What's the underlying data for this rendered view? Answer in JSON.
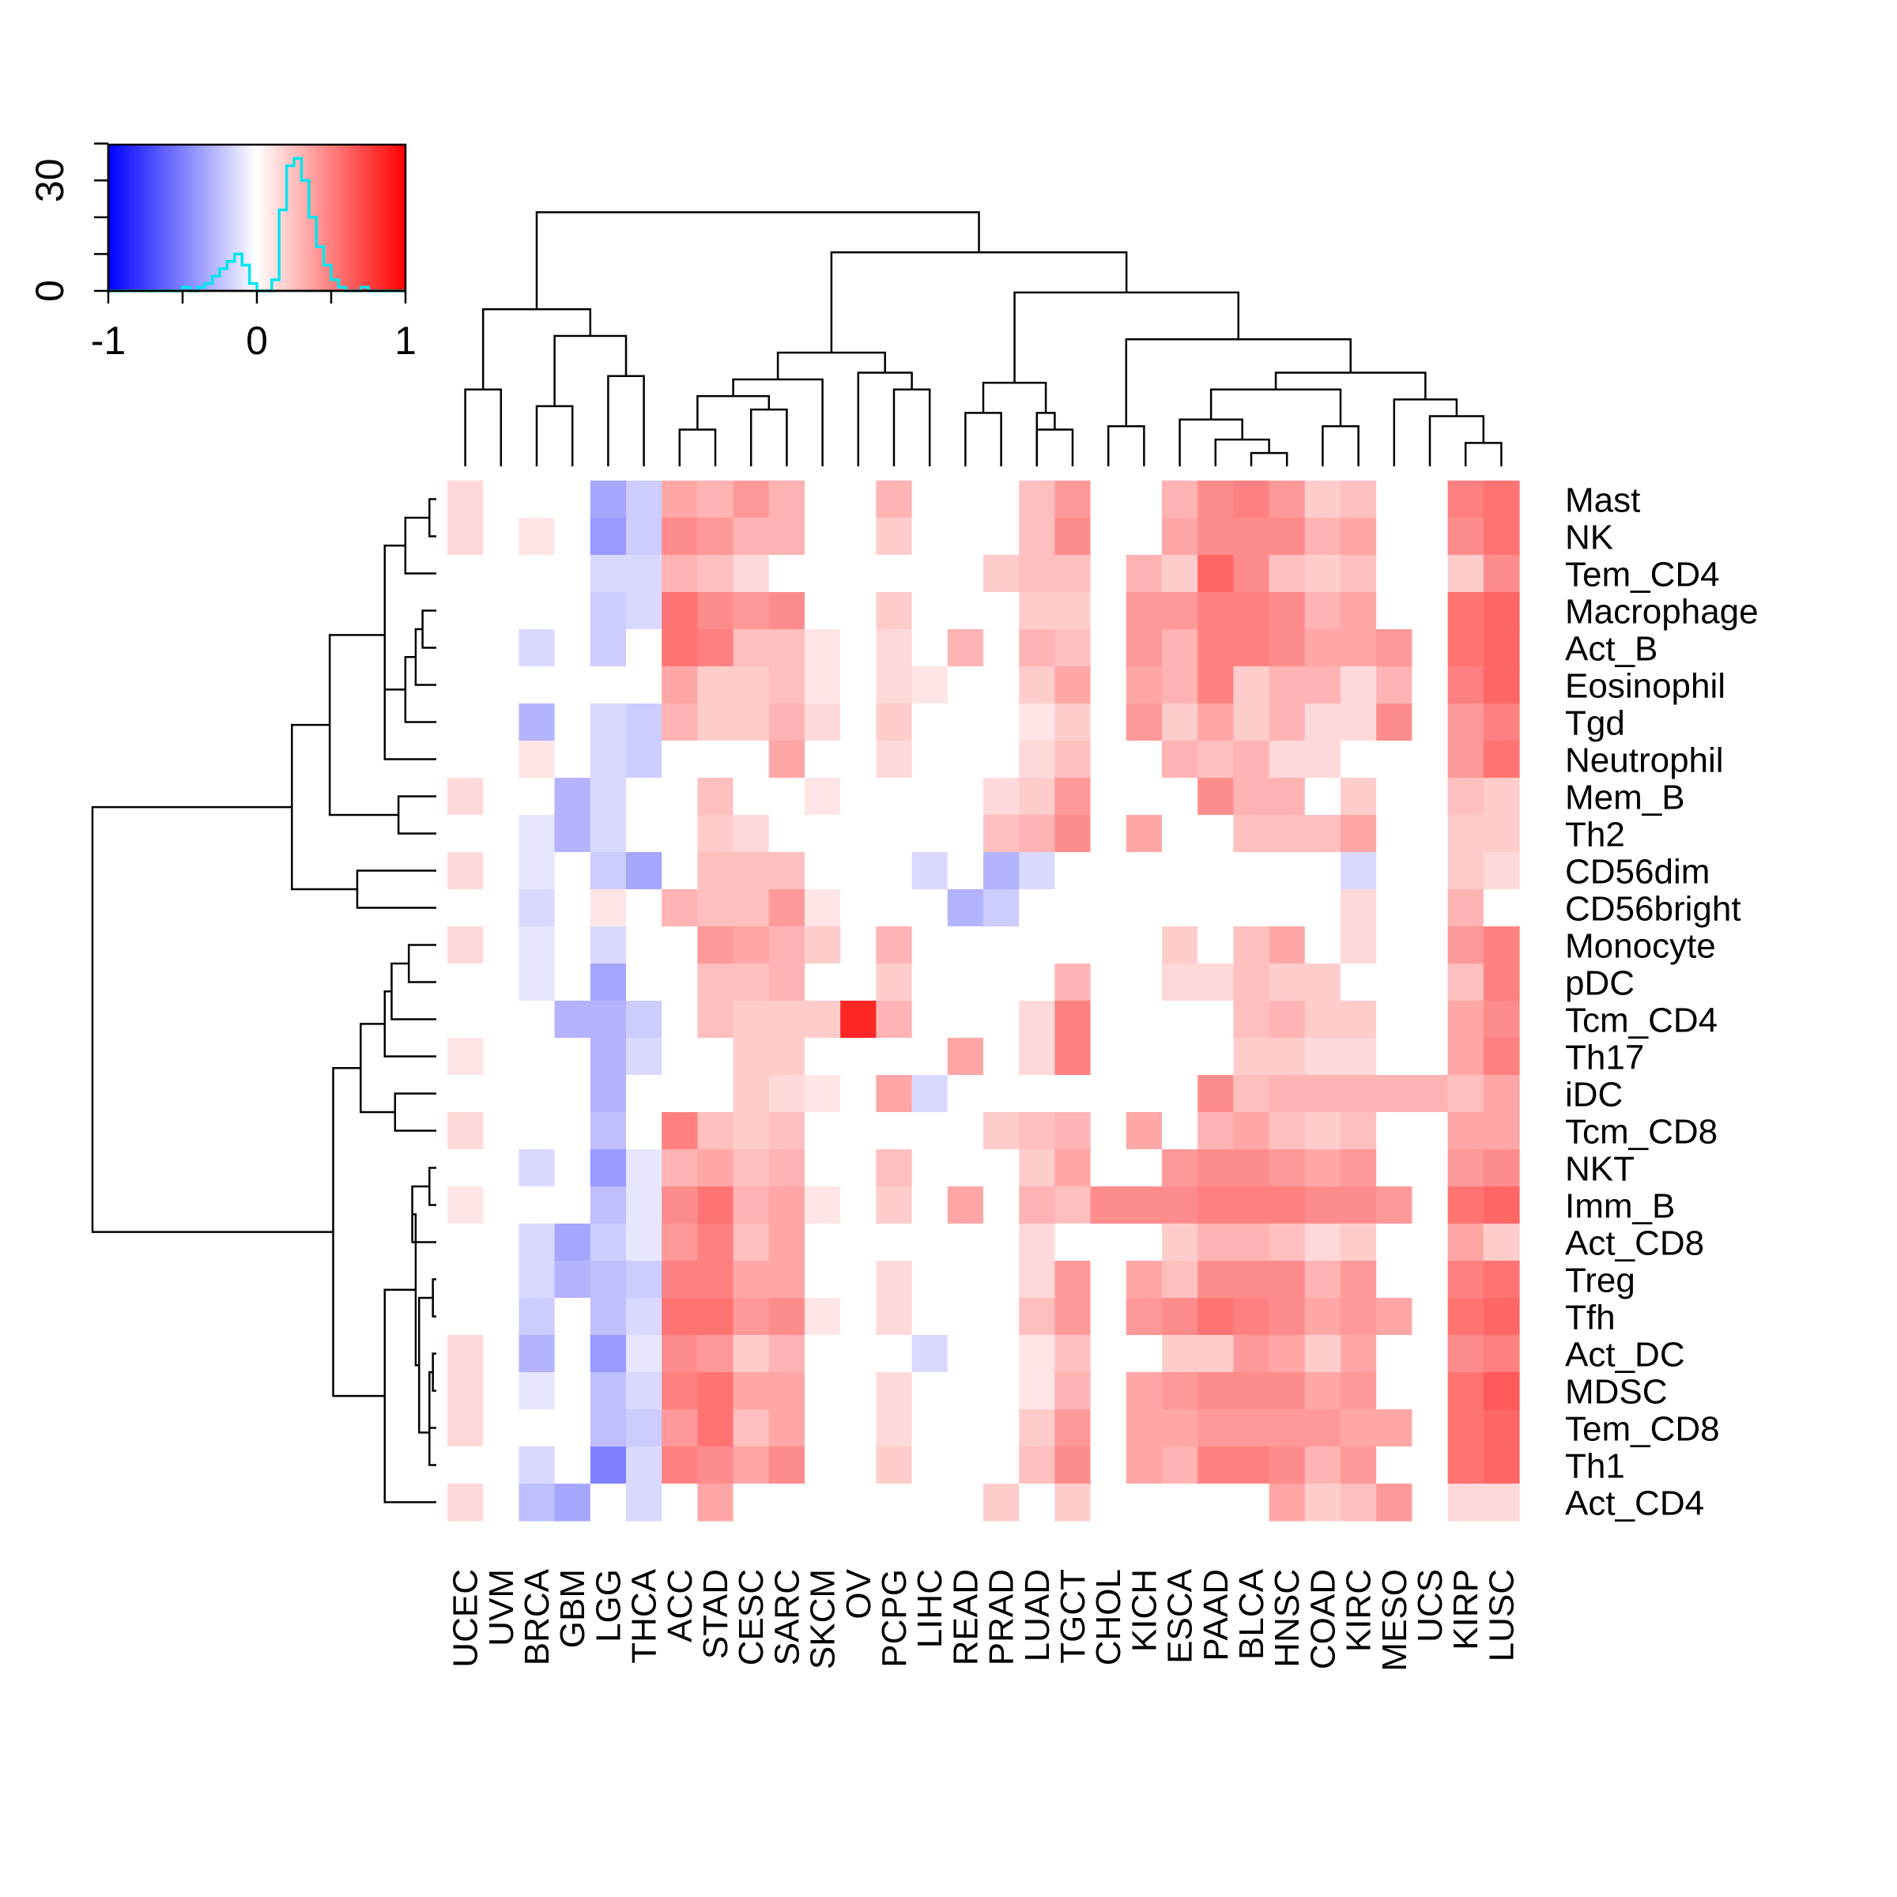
{
  "chart_data": {
    "type": "heatmap",
    "title": "",
    "color_scale": {
      "min": -1,
      "max": 1,
      "low": "#0000ff",
      "mid": "#ffffff",
      "high": "#ff0000"
    },
    "color_key": {
      "x_ticks": [
        "-1",
        "0",
        "1"
      ],
      "y_ticks": [
        "0",
        "30"
      ],
      "hist_color": "#00e5ee",
      "histogram": {
        "x": [
          -0.6,
          -0.55,
          -0.5,
          -0.45,
          -0.4,
          -0.35,
          -0.3,
          -0.25,
          -0.2,
          -0.15,
          -0.1,
          -0.05,
          0,
          0.05,
          0.1,
          0.15,
          0.2,
          0.25,
          0.3,
          0.35,
          0.4,
          0.45,
          0.5,
          0.55,
          0.6,
          0.65,
          0.7,
          0.75
        ],
        "counts": [
          0,
          0,
          1,
          0,
          1,
          2,
          4,
          6,
          8,
          10,
          7,
          2,
          0,
          0,
          3,
          22,
          34,
          36,
          30,
          20,
          12,
          7,
          3,
          1,
          0,
          0,
          1,
          0
        ]
      }
    },
    "columns": [
      "UCEC",
      "UVM",
      "BRCA",
      "GBM",
      "LGG",
      "THCA",
      "ACC",
      "STAD",
      "CESC",
      "SARC",
      "SKCM",
      "OV",
      "PCPG",
      "LIHC",
      "READ",
      "PRAD",
      "LUAD",
      "TGCT",
      "CHOL",
      "KICH",
      "ESCA",
      "PAAD",
      "BLCA",
      "HNSC",
      "COAD",
      "KIRC",
      "MESO",
      "UCS",
      "KIRP",
      "LUSC"
    ],
    "rows": [
      "Mast",
      "NK",
      "Tem_CD4",
      "Macrophage",
      "Act_B",
      "Eosinophil",
      "Tgd",
      "Neutrophil",
      "Mem_B",
      "Th2",
      "CD56dim",
      "CD56bright",
      "Monocyte",
      "pDC",
      "Tcm_CD4",
      "Th17",
      "iDC",
      "Tcm_CD8",
      "NKT",
      "Imm_B",
      "Act_CD8",
      "Treg",
      "Tfh",
      "Act_DC",
      "MDSC",
      "Tem_CD8",
      "Th1",
      "Act_CD4"
    ],
    "values": [
      [
        0.15,
        0,
        0,
        0,
        -0.35,
        -0.2,
        0.35,
        0.3,
        0.4,
        0.3,
        0,
        0,
        0.3,
        0,
        0,
        0,
        0.25,
        0.4,
        0,
        0,
        0.3,
        0.45,
        0.5,
        0.4,
        0.2,
        0.25,
        0,
        0,
        0.5,
        0.55
      ],
      [
        0.15,
        0,
        0.1,
        0,
        -0.4,
        -0.2,
        0.45,
        0.4,
        0.3,
        0.3,
        0,
        0,
        0.2,
        0,
        0,
        0,
        0.25,
        0.45,
        0,
        0,
        0.35,
        0.45,
        0.45,
        0.45,
        0.3,
        0.35,
        0,
        0,
        0.45,
        0.55
      ],
      [
        0,
        0,
        0,
        0,
        -0.15,
        -0.15,
        0.3,
        0.25,
        0.15,
        0,
        0,
        0,
        0,
        0,
        0,
        0.2,
        0.25,
        0.25,
        0,
        0.3,
        0.2,
        0.6,
        0.45,
        0.25,
        0.2,
        0.25,
        0,
        0,
        0.2,
        0.45
      ],
      [
        0,
        0,
        0,
        0,
        -0.2,
        -0.15,
        0.55,
        0.45,
        0.4,
        0.45,
        0,
        0,
        0.2,
        0,
        0,
        0,
        0.2,
        0.2,
        0,
        0.4,
        0.4,
        0.5,
        0.5,
        0.45,
        0.3,
        0.35,
        0,
        0,
        0.55,
        0.6
      ],
      [
        0,
        0,
        -0.15,
        0,
        -0.2,
        0,
        0.55,
        0.5,
        0.25,
        0.25,
        0.1,
        0,
        0.15,
        0,
        0.3,
        0,
        0.3,
        0.25,
        0,
        0.4,
        0.3,
        0.5,
        0.5,
        0.45,
        0.35,
        0.35,
        0.4,
        0,
        0.55,
        0.6
      ],
      [
        0,
        0,
        0,
        0,
        0,
        0,
        0.35,
        0.2,
        0.2,
        0.25,
        0.1,
        0,
        0.15,
        0.1,
        0,
        0,
        0.2,
        0.35,
        0,
        0.35,
        0.3,
        0.5,
        0.2,
        0.3,
        0.3,
        0.15,
        0.3,
        0,
        0.5,
        0.6
      ],
      [
        0,
        0,
        -0.3,
        0,
        -0.15,
        -0.2,
        0.3,
        0.2,
        0.2,
        0.3,
        0.15,
        0,
        0.2,
        0,
        0,
        0,
        0.1,
        0.2,
        0,
        0.4,
        0.2,
        0.35,
        0.2,
        0.3,
        0.15,
        0.15,
        0.45,
        0,
        0.4,
        0.5
      ],
      [
        0,
        0,
        0.1,
        0,
        -0.15,
        -0.2,
        0,
        0,
        0,
        0.35,
        0,
        0,
        0.15,
        0,
        0,
        0,
        0.15,
        0.25,
        0,
        0,
        0.3,
        0.25,
        0.3,
        0.15,
        0.15,
        0,
        0,
        0,
        0.4,
        0.55
      ],
      [
        0.15,
        0,
        0,
        -0.3,
        -0.15,
        0,
        0,
        0.25,
        0,
        0,
        0.1,
        0,
        0,
        0,
        0,
        0.15,
        0.2,
        0.4,
        0,
        0,
        0,
        0.45,
        0.3,
        0.3,
        0,
        0.2,
        0,
        0,
        0.25,
        0.2
      ],
      [
        0,
        0,
        -0.1,
        -0.3,
        -0.15,
        0,
        0,
        0.2,
        0.15,
        0,
        0,
        0,
        0,
        0,
        0,
        0.25,
        0.3,
        0.45,
        0,
        0.35,
        0,
        0,
        0.25,
        0.25,
        0.25,
        0.35,
        0,
        0,
        0.2,
        0.2
      ],
      [
        0.15,
        0,
        -0.1,
        0,
        -0.2,
        -0.35,
        0,
        0.25,
        0.25,
        0.25,
        0,
        0,
        0,
        -0.15,
        0,
        -0.3,
        -0.15,
        0,
        0,
        0,
        0,
        0,
        0,
        0,
        0,
        -0.15,
        0,
        0,
        0.2,
        0.15
      ],
      [
        0,
        0,
        -0.15,
        0,
        0.1,
        0,
        0.3,
        0.25,
        0.25,
        0.4,
        0.1,
        0,
        0,
        0,
        -0.3,
        -0.2,
        0,
        0,
        0,
        0,
        0,
        0,
        0,
        0,
        0,
        0.15,
        0,
        0,
        0.3,
        0
      ],
      [
        0.15,
        0,
        -0.1,
        0,
        -0.15,
        0,
        0,
        0.4,
        0.35,
        0.3,
        0.2,
        0,
        0.3,
        0,
        0,
        0,
        0,
        0,
        0,
        0,
        0.2,
        0,
        0.25,
        0.35,
        0,
        0.15,
        0,
        0,
        0.4,
        0.5
      ],
      [
        0,
        0,
        -0.1,
        0,
        -0.35,
        0,
        0,
        0.25,
        0.25,
        0.3,
        0,
        0,
        0.2,
        0,
        0,
        0,
        0,
        0.3,
        0,
        0,
        0.15,
        0.15,
        0.25,
        0.2,
        0.2,
        0,
        0,
        0,
        0.25,
        0.5
      ],
      [
        0,
        0,
        0,
        -0.3,
        -0.3,
        -0.2,
        0,
        0.25,
        0.2,
        0.2,
        0.2,
        0.85,
        0.3,
        0,
        0,
        0,
        0.15,
        0.5,
        0,
        0,
        0,
        0,
        0.25,
        0.3,
        0.2,
        0.2,
        0,
        0,
        0.35,
        0.45
      ],
      [
        0.1,
        0,
        0,
        0,
        -0.3,
        -0.15,
        0,
        0,
        0.2,
        0.2,
        0,
        0,
        0,
        0,
        0.35,
        0,
        0.15,
        0.5,
        0,
        0,
        0,
        0,
        0.2,
        0.2,
        0.15,
        0.15,
        0,
        0,
        0.35,
        0.5
      ],
      [
        0,
        0,
        0,
        0,
        -0.3,
        0,
        0,
        0,
        0.2,
        0.15,
        0.1,
        0,
        0.35,
        -0.15,
        0,
        0,
        0,
        0,
        0,
        0,
        0,
        0.45,
        0.25,
        0.3,
        0.3,
        0.3,
        0.3,
        0.3,
        0.25,
        0.35
      ],
      [
        0.15,
        0,
        0,
        0,
        -0.25,
        0,
        0.5,
        0.25,
        0.2,
        0.25,
        0,
        0,
        0,
        0,
        0,
        0.2,
        0.25,
        0.3,
        0,
        0.35,
        0,
        0.3,
        0.35,
        0.25,
        0.2,
        0.25,
        0,
        0,
        0.35,
        0.35
      ],
      [
        0,
        0,
        -0.15,
        0,
        -0.4,
        -0.1,
        0.3,
        0.35,
        0.25,
        0.3,
        0,
        0,
        0.25,
        0,
        0,
        0,
        0.2,
        0.35,
        0,
        0,
        0.4,
        0.45,
        0.45,
        0.4,
        0.35,
        0.4,
        0,
        0,
        0.4,
        0.45
      ],
      [
        0.1,
        0,
        0,
        0,
        -0.25,
        -0.1,
        0.45,
        0.55,
        0.3,
        0.35,
        0.1,
        0,
        0.2,
        0,
        0.35,
        0,
        0.3,
        0.25,
        0.45,
        0.45,
        0.45,
        0.5,
        0.5,
        0.5,
        0.45,
        0.45,
        0.4,
        0,
        0.55,
        0.6
      ],
      [
        0,
        0,
        -0.15,
        -0.35,
        -0.2,
        -0.1,
        0.4,
        0.5,
        0.25,
        0.35,
        0,
        0,
        0,
        0,
        0,
        0,
        0.15,
        0,
        0,
        0,
        0.2,
        0.3,
        0.3,
        0.25,
        0.15,
        0.2,
        0,
        0,
        0.35,
        0.2
      ],
      [
        0,
        0,
        -0.15,
        -0.3,
        -0.25,
        -0.2,
        0.5,
        0.5,
        0.35,
        0.35,
        0,
        0,
        0.15,
        0,
        0,
        0,
        0.15,
        0.4,
        0,
        0.35,
        0.25,
        0.45,
        0.45,
        0.45,
        0.3,
        0.4,
        0,
        0,
        0.5,
        0.55
      ],
      [
        0,
        0,
        -0.2,
        0,
        -0.25,
        -0.15,
        0.55,
        0.55,
        0.4,
        0.45,
        0.1,
        0,
        0.15,
        0,
        0,
        0,
        0.25,
        0.4,
        0,
        0.4,
        0.45,
        0.55,
        0.5,
        0.45,
        0.35,
        0.4,
        0.35,
        0,
        0.55,
        0.6
      ],
      [
        0.15,
        0,
        -0.3,
        0,
        -0.4,
        -0.1,
        0.45,
        0.4,
        0.2,
        0.3,
        0,
        0,
        0,
        -0.15,
        0,
        0,
        0.1,
        0.25,
        0,
        0,
        0.2,
        0.2,
        0.4,
        0.35,
        0.2,
        0.35,
        0,
        0,
        0.45,
        0.5
      ],
      [
        0.15,
        0,
        -0.1,
        0,
        -0.25,
        -0.15,
        0.5,
        0.55,
        0.35,
        0.35,
        0,
        0,
        0.15,
        0,
        0,
        0,
        0.1,
        0.3,
        0,
        0.35,
        0.4,
        0.45,
        0.45,
        0.45,
        0.35,
        0.4,
        0,
        0,
        0.55,
        0.65
      ],
      [
        0.15,
        0,
        0,
        0,
        -0.25,
        -0.2,
        0.4,
        0.55,
        0.25,
        0.35,
        0,
        0,
        0.15,
        0,
        0,
        0,
        0.2,
        0.4,
        0,
        0.35,
        0.35,
        0.4,
        0.4,
        0.4,
        0.4,
        0.35,
        0.35,
        0,
        0.55,
        0.6
      ],
      [
        0,
        0,
        -0.15,
        0,
        -0.5,
        -0.15,
        0.5,
        0.45,
        0.35,
        0.45,
        0,
        0,
        0.2,
        0,
        0,
        0,
        0.25,
        0.45,
        0,
        0.35,
        0.3,
        0.5,
        0.5,
        0.45,
        0.3,
        0.4,
        0,
        0,
        0.55,
        0.6
      ],
      [
        0.15,
        0,
        -0.25,
        -0.35,
        0,
        -0.15,
        0,
        0.35,
        0,
        0,
        0,
        0,
        0,
        0,
        0,
        0.2,
        0,
        0.2,
        0,
        0,
        0,
        0,
        0,
        0.35,
        0.2,
        0.25,
        0.4,
        0,
        0.15,
        0.15
      ]
    ]
  }
}
